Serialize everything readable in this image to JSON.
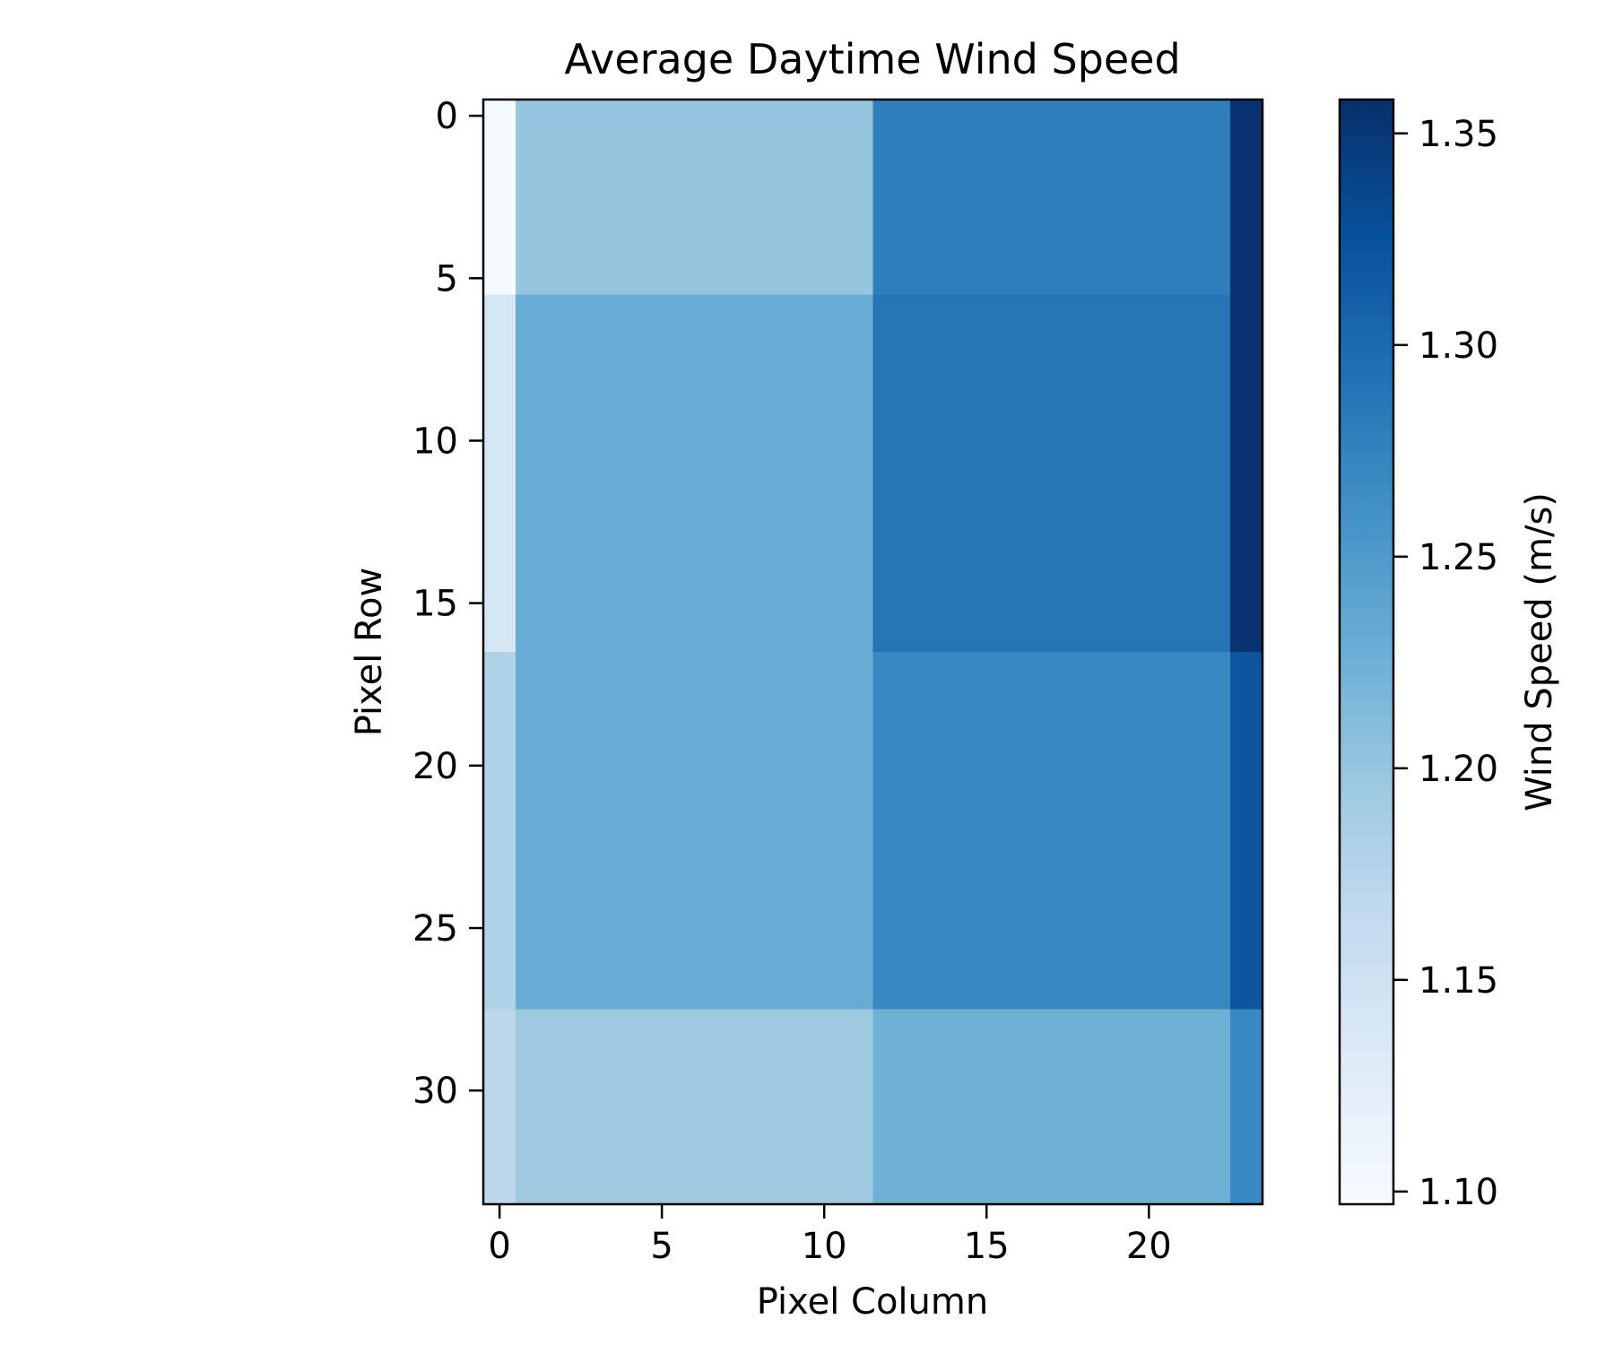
{
  "chart_data": {
    "type": "heatmap",
    "title": "Average Daytime Wind Speed",
    "xlabel": "Pixel Column",
    "ylabel": "Pixel Row",
    "colorbar_label": "Wind Speed (m/s)",
    "colormap": "Blues",
    "x_tick_labels": [
      "0",
      "5",
      "10",
      "15",
      "20"
    ],
    "x_tick_values": [
      0,
      5,
      10,
      15,
      20
    ],
    "y_tick_labels": [
      "0",
      "5",
      "10",
      "15",
      "20",
      "25",
      "30"
    ],
    "y_tick_values": [
      0,
      5,
      10,
      15,
      20,
      25,
      30
    ],
    "colorbar_tick_labels": [
      "1.10",
      "1.15",
      "1.20",
      "1.25",
      "1.30",
      "1.35"
    ],
    "colorbar_tick_values": [
      1.1,
      1.15,
      1.2,
      1.25,
      1.3,
      1.35
    ],
    "value_range": [
      1.097,
      1.358
    ],
    "x_range": [
      -0.5,
      23.5
    ],
    "y_range": [
      -0.5,
      33.5
    ],
    "blocks": [
      {
        "rows": [
          0,
          5
        ],
        "cols": [
          0,
          0
        ],
        "value": 1.1
      },
      {
        "rows": [
          0,
          5
        ],
        "cols": [
          1,
          11
        ],
        "value": 1.2
      },
      {
        "rows": [
          0,
          5
        ],
        "cols": [
          12,
          22
        ],
        "value": 1.28
      },
      {
        "rows": [
          0,
          5
        ],
        "cols": [
          23,
          23
        ],
        "value": 1.355
      },
      {
        "rows": [
          6,
          16
        ],
        "cols": [
          0,
          0
        ],
        "value": 1.14
      },
      {
        "rows": [
          6,
          16
        ],
        "cols": [
          1,
          11
        ],
        "value": 1.23
      },
      {
        "rows": [
          6,
          16
        ],
        "cols": [
          12,
          22
        ],
        "value": 1.29
      },
      {
        "rows": [
          6,
          16
        ],
        "cols": [
          23,
          23
        ],
        "value": 1.355
      },
      {
        "rows": [
          17,
          27
        ],
        "cols": [
          0,
          0
        ],
        "value": 1.18
      },
      {
        "rows": [
          17,
          27
        ],
        "cols": [
          1,
          11
        ],
        "value": 1.23
      },
      {
        "rows": [
          17,
          27
        ],
        "cols": [
          12,
          22
        ],
        "value": 1.27
      },
      {
        "rows": [
          17,
          27
        ],
        "cols": [
          23,
          23
        ],
        "value": 1.32
      },
      {
        "rows": [
          28,
          33
        ],
        "cols": [
          0,
          0
        ],
        "value": 1.17
      },
      {
        "rows": [
          28,
          33
        ],
        "cols": [
          1,
          11
        ],
        "value": 1.195
      },
      {
        "rows": [
          28,
          33
        ],
        "cols": [
          12,
          22
        ],
        "value": 1.225
      },
      {
        "rows": [
          28,
          33
        ],
        "cols": [
          23,
          23
        ],
        "value": 1.27
      }
    ]
  }
}
